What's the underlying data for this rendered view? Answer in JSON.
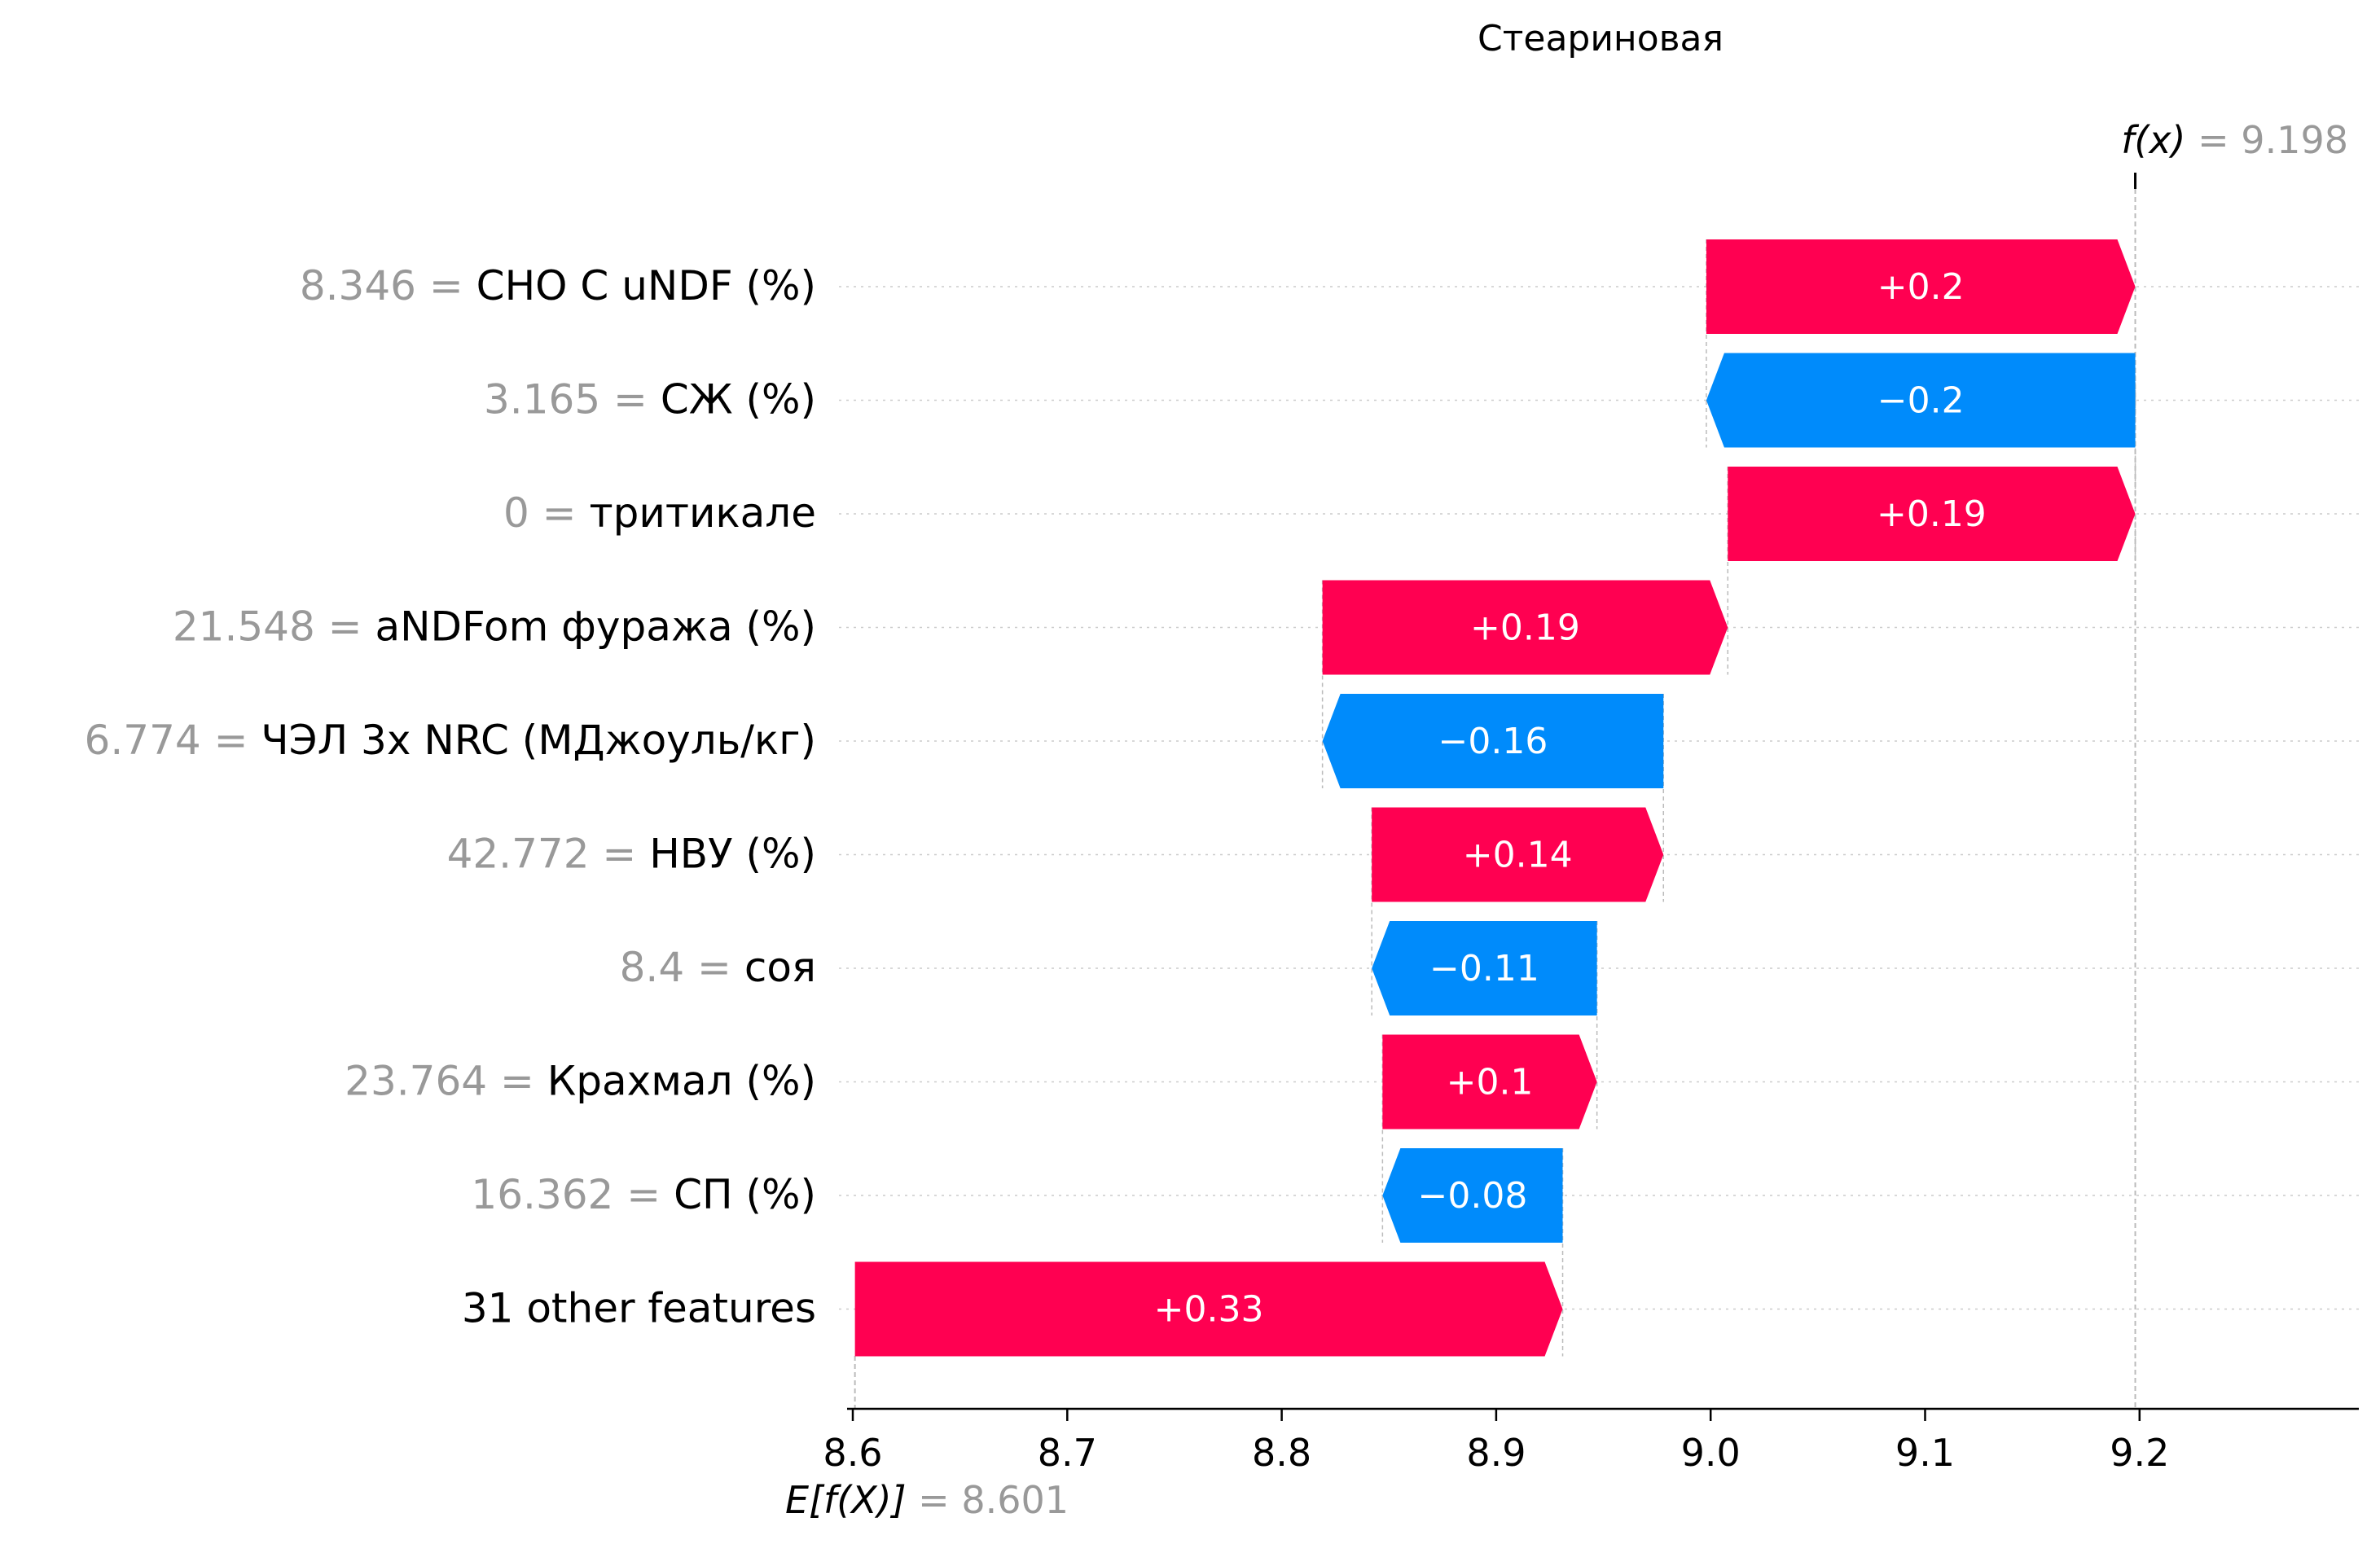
{
  "chart_data": {
    "type": "bar",
    "subtype": "waterfall",
    "title": "Стеариновая",
    "fx_label": "f(x)",
    "fx_value": "9.198",
    "fx": 9.198,
    "base_label": "E[f(X)]",
    "base_value_text": "8.601",
    "base_value": 8.601,
    "xlim": [
      8.6,
      9.3
    ],
    "xticks": [
      "8.6",
      "8.7",
      "8.8",
      "8.9",
      "9.0",
      "9.1",
      "9.2"
    ],
    "grid": false,
    "colors": {
      "positive": "#ff0051",
      "negative": "#008bfb",
      "value_gray": "#999999"
    },
    "features": [
      {
        "value": "8.346",
        "name": "СНО С uNDF (%)",
        "label": "+0.2",
        "start": 8.998,
        "end": 9.198
      },
      {
        "value": "3.165",
        "name": "СЖ (%)",
        "label": "−0.2",
        "start": 9.198,
        "end": 8.998
      },
      {
        "value": "0",
        "name": "тритикале",
        "label": "+0.19",
        "start": 9.008,
        "end": 9.198
      },
      {
        "value": "21.548",
        "name": "aNDFom фуража (%)",
        "label": "+0.19",
        "start": 8.819,
        "end": 9.008
      },
      {
        "value": "6.774",
        "name": "ЧЭЛ 3x NRC (МДжоуль/кг)",
        "label": "−0.16",
        "start": 8.978,
        "end": 8.819
      },
      {
        "value": "42.772",
        "name": "НВУ (%)",
        "label": "+0.14",
        "start": 8.842,
        "end": 8.978
      },
      {
        "value": "8.4",
        "name": "соя",
        "label": "−0.11",
        "start": 8.947,
        "end": 8.842
      },
      {
        "value": "23.764",
        "name": "Крахмал (%)",
        "label": "+0.1",
        "start": 8.847,
        "end": 8.947
      },
      {
        "value": "16.362",
        "name": "СП (%)",
        "label": "−0.08",
        "start": 8.931,
        "end": 8.847
      },
      {
        "value": "",
        "name": "31 other features",
        "label": "+0.33",
        "start": 8.601,
        "end": 8.931
      }
    ]
  }
}
